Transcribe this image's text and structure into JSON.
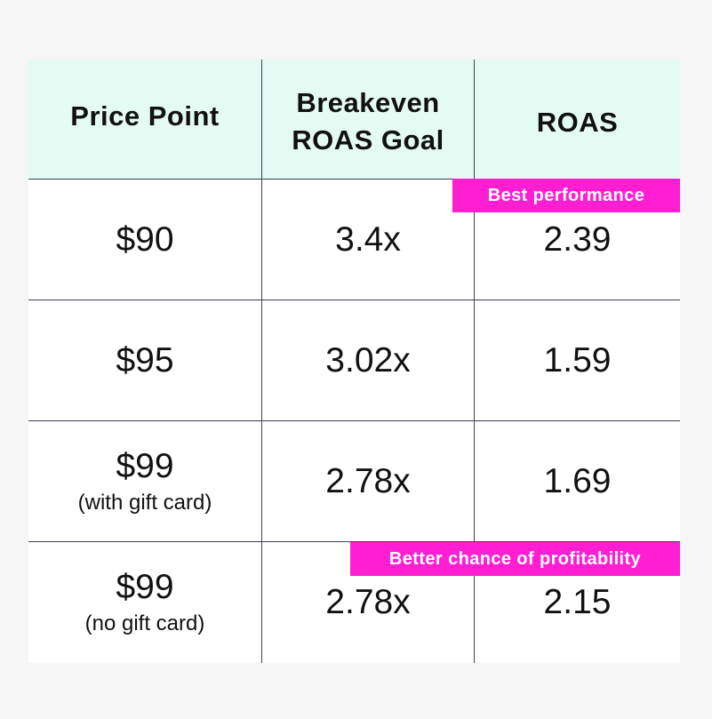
{
  "colors": {
    "page_background": "#f6f6f6",
    "header_background": "#e3fbf3",
    "grid_line": "#3d3d55",
    "badge_background": "#ff1ed2",
    "badge_text": "#ffffff"
  },
  "table": {
    "headers": {
      "price_point": "Price Point",
      "breakeven_line1": "Breakeven",
      "breakeven_line2": "ROAS Goal",
      "roas": "ROAS"
    },
    "rows": [
      {
        "price": "$90",
        "note": "",
        "breakeven": "3.4x",
        "roas": "2.39"
      },
      {
        "price": "$95",
        "note": "",
        "breakeven": "3.02x",
        "roas": "1.59"
      },
      {
        "price": "$99",
        "note": "(with gift card)",
        "breakeven": "2.78x",
        "roas": "1.69"
      },
      {
        "price": "$99",
        "note": "(no gift card)",
        "breakeven": "2.78x",
        "roas": "2.15"
      }
    ]
  },
  "badges": {
    "best_performance": "Best performance",
    "better_chance": "Better chance of profitability"
  }
}
